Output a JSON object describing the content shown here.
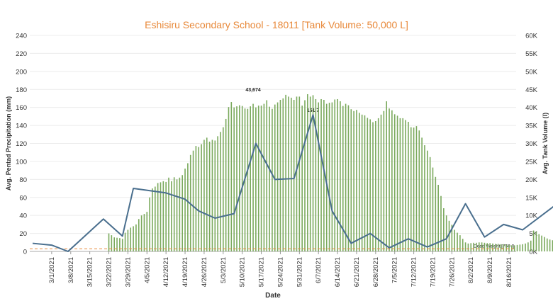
{
  "title": "Eshisiru Secondary School - 18011 [Tank Volume: 50,000 L]",
  "colors": {
    "title": "#e8893a",
    "bars": "#7aa95c",
    "line": "#4a6f8e",
    "dead_weight": "#e8893a"
  },
  "chart_data": {
    "type": "bar+line",
    "xlabel": "Date",
    "ylabel_left": "Avg. Pentad Precipitation (mm)",
    "ylabel_right": "Avg. Tank Volume (l)",
    "ylim_left": [
      0,
      240
    ],
    "ylim_right": [
      0,
      60000
    ],
    "left_ticks": [
      "0",
      "20",
      "40",
      "60",
      "80",
      "100",
      "120",
      "140",
      "160",
      "180",
      "200",
      "220",
      "240"
    ],
    "right_ticks": [
      "0K",
      "5K",
      "10K",
      "15K",
      "20K",
      "25K",
      "30K",
      "35K",
      "40K",
      "45K",
      "50K",
      "55K",
      "60K"
    ],
    "x_ticks": [
      "3/1/2021",
      "3/8/2021",
      "3/15/2021",
      "3/22/2021",
      "3/29/2021",
      "4/5/2021",
      "4/12/2021",
      "4/19/2021",
      "4/26/2021",
      "5/3/2021",
      "5/10/2021",
      "5/17/2021",
      "5/24/2021",
      "5/31/2021",
      "6/7/2021",
      "6/14/2021",
      "6/21/2021",
      "6/28/2021",
      "7/5/2021",
      "7/12/2021",
      "7/19/2021",
      "7/26/2021",
      "8/2/2021",
      "8/9/2021",
      "8/16/2021"
    ],
    "series": [
      {
        "name": "Avg. Tank Volume (l)",
        "axis": "right",
        "kind": "bar",
        "start_day": 21,
        "values": [
          5000,
          4500,
          3900,
          3800,
          3700,
          3500,
          5200,
          6000,
          6600,
          7000,
          7500,
          9000,
          10000,
          10400,
          11000,
          15000,
          17500,
          18000,
          19000,
          19200,
          19500,
          19300,
          20500,
          19500,
          20600,
          20000,
          20500,
          21200,
          23000,
          24500,
          26800,
          28000,
          29300,
          29000,
          29800,
          31000,
          31600,
          30500,
          31000,
          30800,
          32000,
          33200,
          34500,
          36800,
          40100,
          41500,
          40000,
          40300,
          40600,
          40400,
          39700,
          39600,
          40300,
          41000,
          40000,
          40500,
          40500,
          41000,
          42000,
          40200,
          39600,
          40800,
          41400,
          42100,
          42500,
          43500,
          43000,
          42700,
          42100,
          43000,
          43000,
          40500,
          42000,
          43674,
          43000,
          43400,
          42300,
          41400,
          42300,
          42100,
          41000,
          41300,
          41400,
          42200,
          42300,
          41700,
          40400,
          41000,
          40600,
          39500,
          39000,
          39300,
          38500,
          38000,
          37800,
          37100,
          36700,
          35900,
          36200,
          37000,
          38000,
          39000,
          41700,
          39700,
          39200,
          38100,
          37700,
          37000,
          37000,
          36500,
          36000,
          34500,
          34400,
          34800,
          33600,
          31600,
          29500,
          28000,
          26200,
          23300,
          20700,
          18500,
          15400,
          12000,
          10000,
          8500,
          7400,
          6000,
          5200,
          4500,
          3500,
          2500,
          2200,
          2300,
          2400,
          2400,
          2500,
          2500,
          2400,
          2300,
          2300,
          2200,
          2100,
          2100,
          2000,
          2000,
          1900,
          1800,
          1700,
          1700,
          1800,
          1900,
          2000,
          2200,
          2500,
          3000,
          5800,
          5500,
          4800,
          4400,
          4000,
          3600,
          3300,
          3100,
          2800,
          2600,
          2400
        ]
      },
      {
        "name": "Avg. Pentad Precipitation (mm)",
        "axis": "left",
        "kind": "line",
        "points": [
          [
            -7,
            9
          ],
          [
            0,
            7
          ],
          [
            6,
            0
          ],
          [
            19,
            36
          ],
          [
            26,
            17
          ],
          [
            30,
            70
          ],
          [
            42,
            65
          ],
          [
            49,
            58
          ],
          [
            54,
            45
          ],
          [
            60,
            37
          ],
          [
            67,
            42
          ],
          [
            75,
            120
          ],
          [
            82,
            80
          ],
          [
            89,
            81
          ],
          [
            96,
            151.7
          ],
          [
            103,
            45
          ],
          [
            110,
            9
          ],
          [
            117,
            20
          ],
          [
            124,
            4
          ],
          [
            131,
            14
          ],
          [
            138,
            5
          ],
          [
            145,
            14
          ],
          [
            152,
            53
          ],
          [
            159,
            16
          ],
          [
            166,
            30
          ],
          [
            173,
            24
          ],
          [
            180,
            40
          ],
          [
            187,
            56
          ],
          [
            194,
            31
          ]
        ]
      }
    ],
    "annotations": [
      {
        "text": "43,674",
        "series": "Avg. Tank Volume (l)",
        "x": 74,
        "y": 43674
      },
      {
        "text": "151.7",
        "series": "Avg. Pentad Precipitation (mm)",
        "x": 96,
        "y": 151.7
      }
    ],
    "reference_line": {
      "text": "Dead Weight [750 l]",
      "axis": "right",
      "value": 750
    }
  }
}
